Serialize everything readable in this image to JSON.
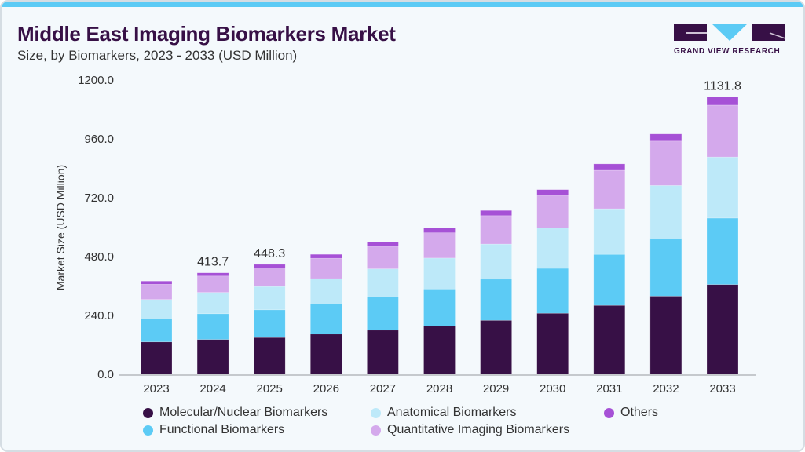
{
  "header": {
    "title": "Middle East Imaging Biomarkers Market",
    "subtitle": "Size, by Biomarkers, 2023 - 2033 (USD Million)",
    "logo_text": "GRAND VIEW RESEARCH"
  },
  "colors": {
    "Molecular/Nuclear Biomarkers": "#371046",
    "Functional Biomarkers": "#5ccbf5",
    "Anatomical Biomarkers": "#bde9f9",
    "Quantitative Imaging Biomarkers": "#d4a9ec",
    "Others": "#a651d6"
  },
  "chart_data": {
    "type": "bar",
    "stacked": true,
    "title": "Middle East Imaging Biomarkers Market",
    "xlabel": "",
    "ylabel": "Market Size (USD Million)",
    "ylim": [
      0,
      1200
    ],
    "yticks": [
      "0.0",
      "240.0",
      "480.0",
      "720.0",
      "960.0",
      "1200.0"
    ],
    "ytick_values": [
      0,
      240,
      480,
      720,
      960,
      1200
    ],
    "grid": false,
    "legend_position": "bottom",
    "categories": [
      "2023",
      "2024",
      "2025",
      "2026",
      "2027",
      "2028",
      "2029",
      "2030",
      "2031",
      "2032",
      "2033"
    ],
    "series": [
      {
        "name": "Molecular/Nuclear Biomarkers",
        "values": [
          132,
          142,
          150,
          164,
          180,
          197,
          220,
          249,
          281,
          319,
          366
        ]
      },
      {
        "name": "Functional Biomarkers",
        "values": [
          94,
          105,
          113,
          123,
          136,
          151,
          168,
          183,
          208,
          236,
          271
        ]
      },
      {
        "name": "Anatomical Biomarkers",
        "values": [
          79,
          87,
          95,
          103,
          114,
          126,
          143,
          164,
          186,
          215,
          249
        ]
      },
      {
        "name": "Quantitative Imaging Biomarkers",
        "values": [
          62,
          66.7,
          76,
          83,
          92,
          103,
          116,
          134,
          157,
          181,
          211.8
        ]
      },
      {
        "name": "Others",
        "values": [
          13,
          13,
          14.3,
          16,
          18,
          20,
          21,
          23,
          26,
          29,
          34
        ]
      }
    ],
    "annotations": [
      {
        "category": "2024",
        "text": "413.7"
      },
      {
        "category": "2025",
        "text": "448.3"
      },
      {
        "category": "2033",
        "text": "1131.8"
      }
    ]
  },
  "legend": [
    {
      "label": "Molecular/Nuclear Biomarkers"
    },
    {
      "label": "Anatomical Biomarkers"
    },
    {
      "label": "Others"
    },
    {
      "label": "Functional Biomarkers"
    },
    {
      "label": "Quantitative Imaging Biomarkers"
    }
  ]
}
